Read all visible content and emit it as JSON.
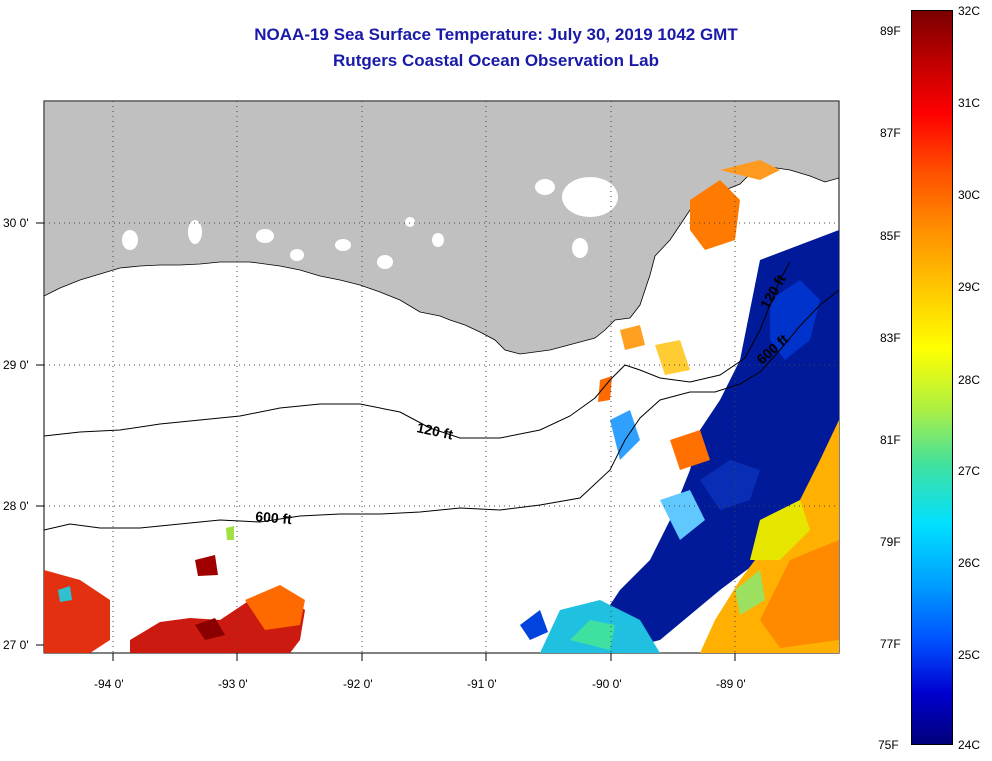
{
  "title": {
    "line1": "NOAA-19 Sea Surface Temperature:  July 30, 2019 1042 GMT",
    "line2": "Rutgers Coastal Ocean Observation Lab"
  },
  "map": {
    "lat_labels": [
      "30 0'",
      "29 0'",
      "28 0'",
      "27 0'"
    ],
    "lon_labels": [
      "-94 0'",
      "-93 0'",
      "-92 0'",
      "-91 0'",
      "-90 0'",
      "-89 0'"
    ],
    "contours": {
      "c120_west": "120 ft",
      "c600_west": "600 ft",
      "c120_east": "120 ft",
      "c600_east": "600 ft"
    },
    "colors": {
      "land": "#c0c0c0",
      "title": "#1a1aa8"
    }
  },
  "colorbar": {
    "fahrenheit_labels": [
      "89F",
      "87F",
      "85F",
      "83F",
      "81F",
      "79F",
      "77F",
      "75F"
    ],
    "celsius_labels": [
      "32C",
      "31C",
      "30C",
      "29C",
      "28C",
      "27C",
      "26C",
      "25C",
      "24C"
    ]
  }
}
